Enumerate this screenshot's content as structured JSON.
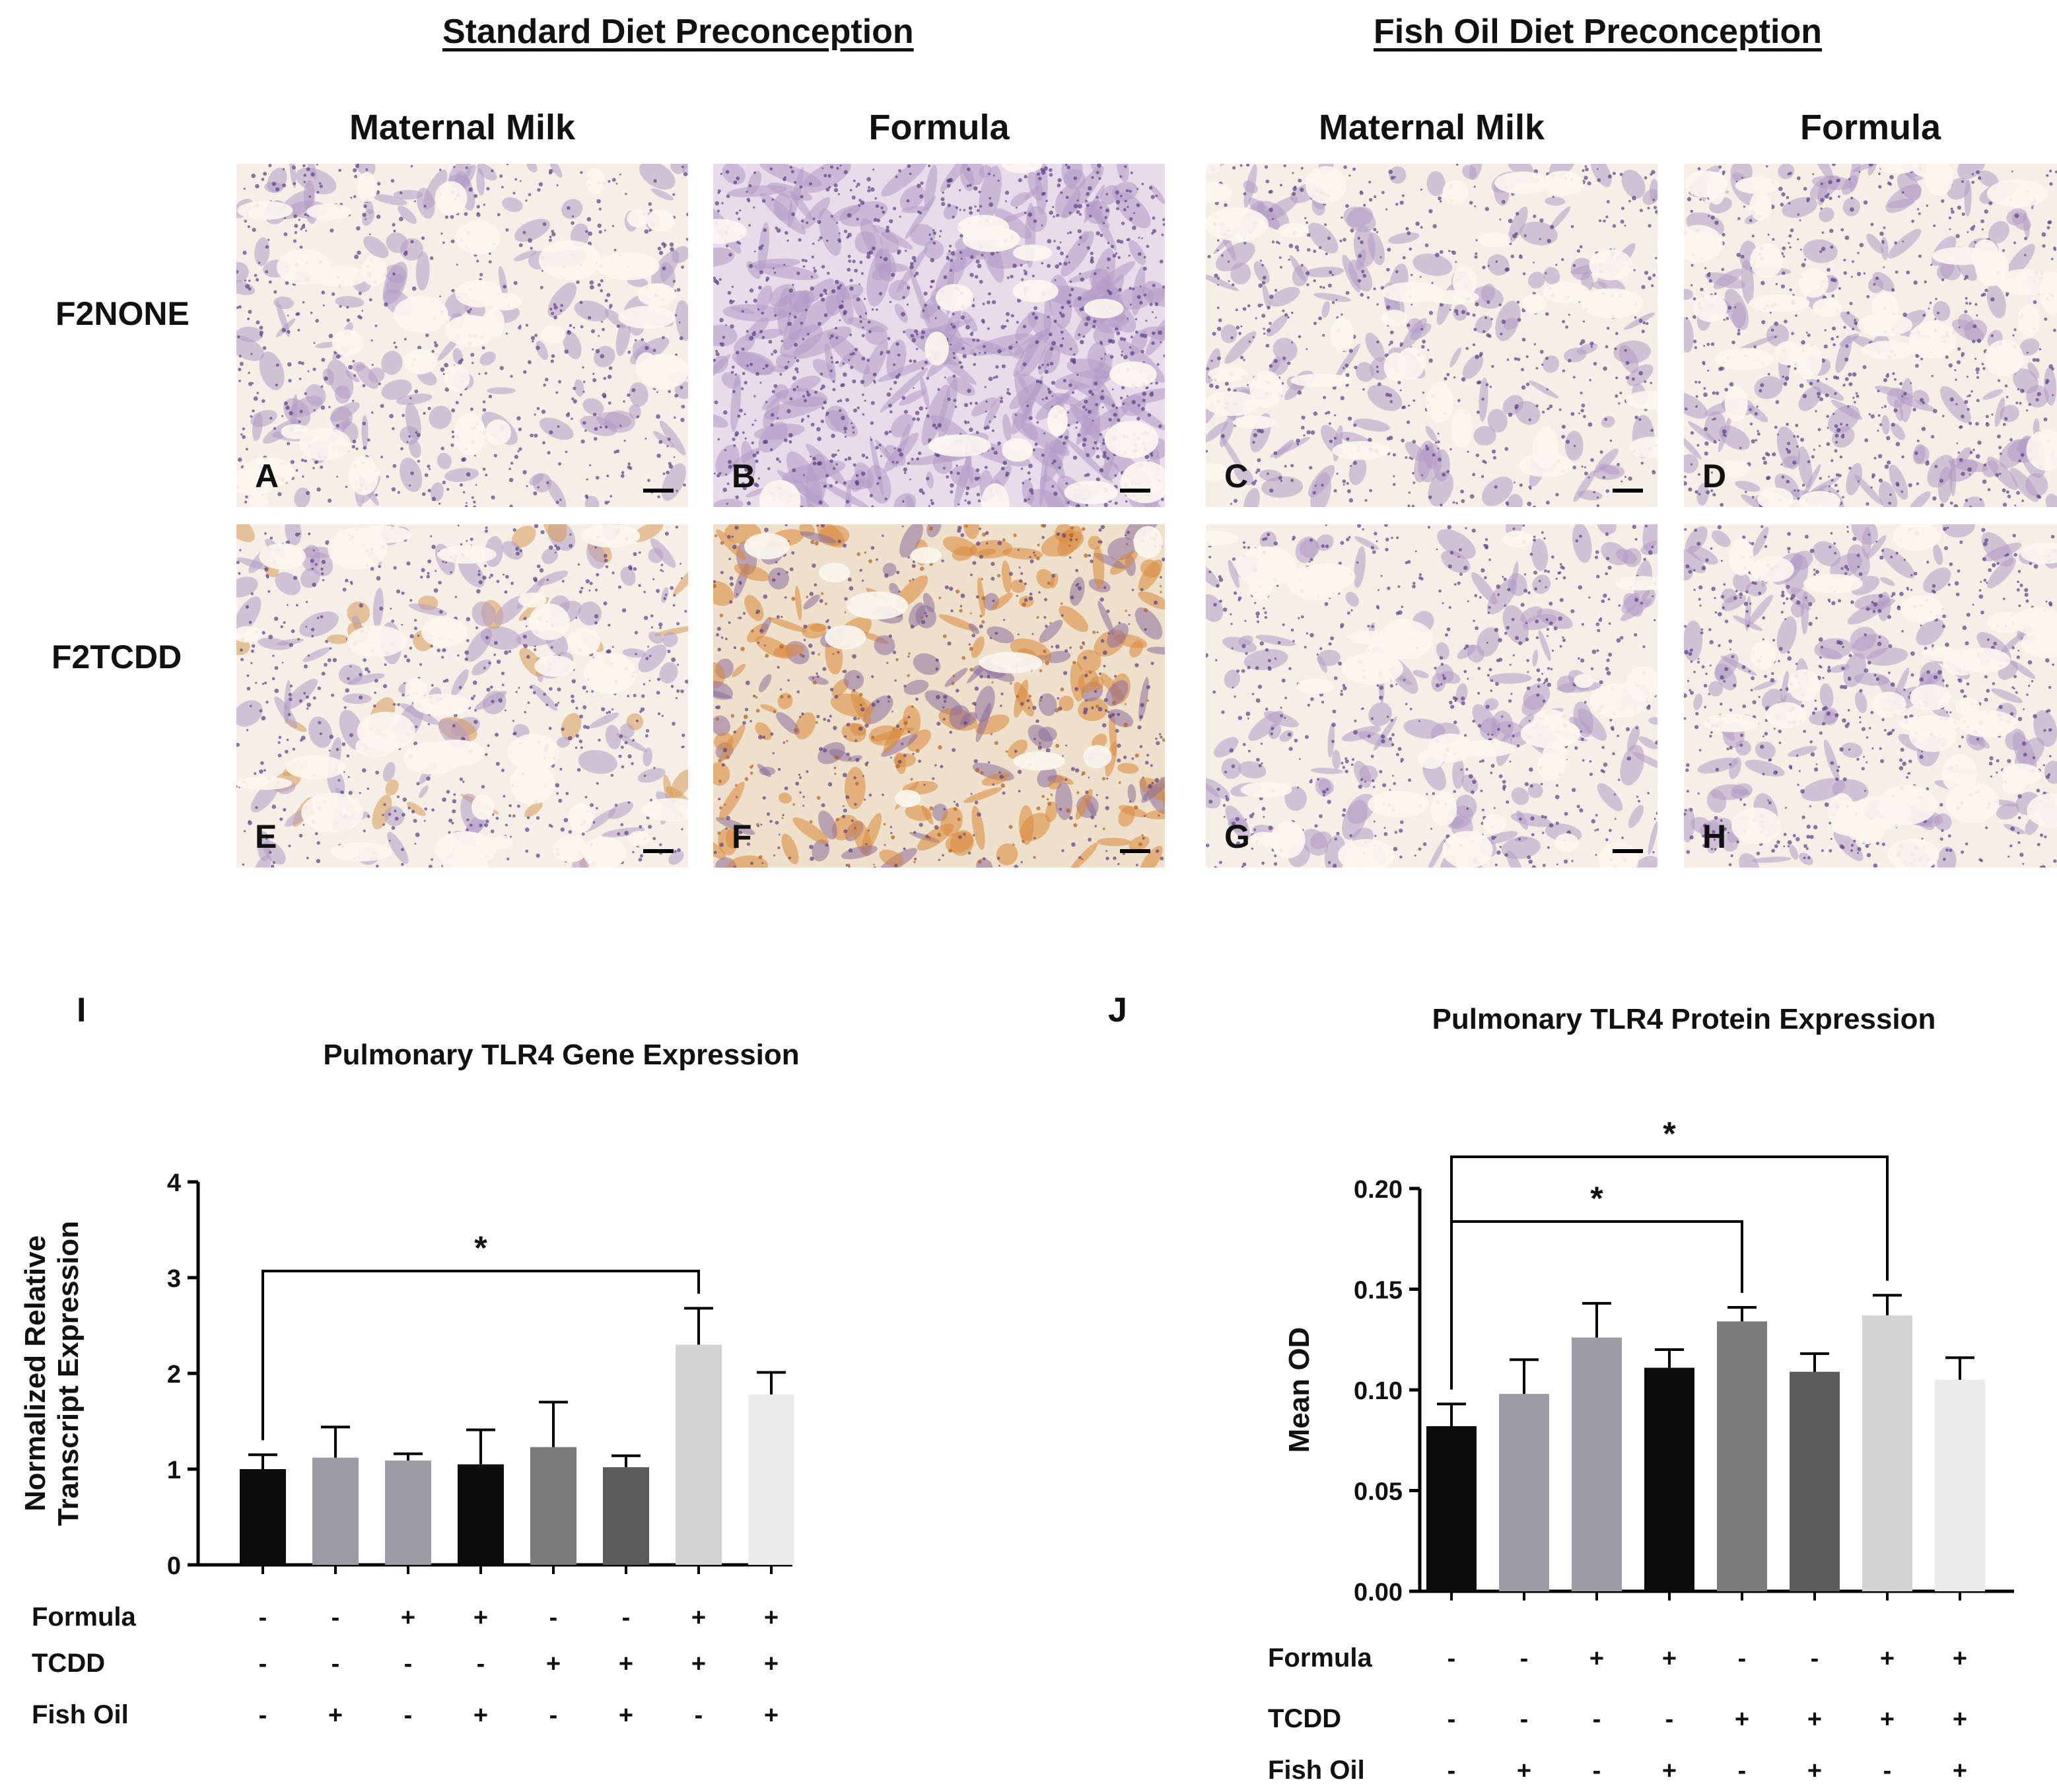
{
  "headers": {
    "standard": "Standard Diet Preconception",
    "fishoil": "Fish Oil Diet Preconception"
  },
  "columns": [
    "Maternal Milk",
    "Formula",
    "Maternal Milk",
    "Formula"
  ],
  "rows": [
    "F2NONE",
    "F2TCDD"
  ],
  "panels": [
    {
      "letter": "A",
      "stain": "light"
    },
    {
      "letter": "B",
      "stain": "dense"
    },
    {
      "letter": "C",
      "stain": "light"
    },
    {
      "letter": "D",
      "stain": "light"
    },
    {
      "letter": "E",
      "stain": "brown-light"
    },
    {
      "letter": "F",
      "stain": "brown-heavy"
    },
    {
      "letter": "G",
      "stain": "light"
    },
    {
      "letter": "H",
      "stain": "light"
    }
  ],
  "chart_data": [
    {
      "type": "bar",
      "panel": "I",
      "title": "Pulmonary TLR4 Gene Expression",
      "ylabel_lines": [
        "Normalized Relative",
        "Transcript Expression"
      ],
      "xlabel": "",
      "ylim": [
        0,
        4
      ],
      "yticks": [
        "0",
        "1",
        "2",
        "3",
        "4"
      ],
      "values": [
        1.0,
        1.12,
        1.09,
        1.05,
        1.23,
        1.02,
        2.3,
        1.78
      ],
      "errors": [
        0.15,
        0.32,
        0.07,
        0.36,
        0.47,
        0.12,
        0.38,
        0.23
      ],
      "colors": [
        "#0d0d0d",
        "#9d9ca3",
        "#9d9ca3",
        "#0d0d0d",
        "#7b7b7b",
        "#5c5c5c",
        "#d3d3d3",
        "#ececec"
      ],
      "significance": [
        {
          "from": 0,
          "to": 6,
          "label": "*"
        }
      ],
      "factors": [
        {
          "name": "Formula",
          "signs": [
            "-",
            "-",
            "+",
            "+",
            "-",
            "-",
            "+",
            "+"
          ]
        },
        {
          "name": "TCDD",
          "signs": [
            "-",
            "-",
            "-",
            "-",
            "+",
            "+",
            "+",
            "+"
          ]
        },
        {
          "name": "Fish Oil",
          "signs": [
            "-",
            "+",
            "-",
            "+",
            "-",
            "+",
            "-",
            "+"
          ]
        }
      ]
    },
    {
      "type": "bar",
      "panel": "J",
      "title": "Pulmonary TLR4 Protein Expression",
      "ylabel_lines": [
        "Mean OD"
      ],
      "xlabel": "",
      "ylim": [
        0,
        0.2
      ],
      "yticks": [
        "0.00",
        "0.05",
        "0.10",
        "0.15",
        "0.20"
      ],
      "values": [
        0.082,
        0.098,
        0.126,
        0.111,
        0.134,
        0.109,
        0.137,
        0.105
      ],
      "errors": [
        0.011,
        0.017,
        0.017,
        0.009,
        0.007,
        0.009,
        0.01,
        0.011
      ],
      "colors": [
        "#0d0d0d",
        "#9d9ca3",
        "#9d9ca3",
        "#0d0d0d",
        "#7b7b7b",
        "#5c5c5c",
        "#d3d3d3",
        "#ececec"
      ],
      "significance": [
        {
          "from": 0,
          "to": 4,
          "label": "*"
        },
        {
          "from": 0,
          "to": 6,
          "label": "*"
        }
      ],
      "factors": [
        {
          "name": "Formula",
          "signs": [
            "-",
            "-",
            "+",
            "+",
            "-",
            "-",
            "+",
            "+"
          ]
        },
        {
          "name": "TCDD",
          "signs": [
            "-",
            "-",
            "-",
            "-",
            "+",
            "+",
            "+",
            "+"
          ]
        },
        {
          "name": "Fish Oil",
          "signs": [
            "-",
            "+",
            "-",
            "+",
            "-",
            "+",
            "-",
            "+"
          ]
        }
      ]
    }
  ]
}
